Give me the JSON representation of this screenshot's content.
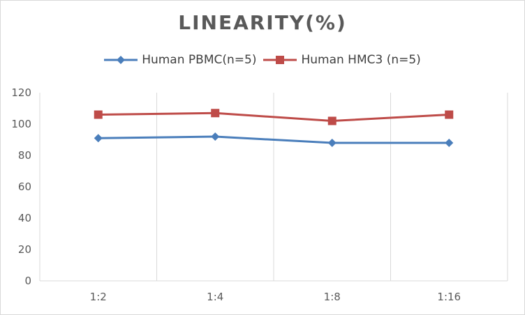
{
  "chart_data": {
    "type": "line",
    "title": "LINEARITY(%)",
    "categories": [
      "1:2",
      "1:4",
      "1:8",
      "1:16"
    ],
    "series": [
      {
        "name": "Human PBMC(n=5)",
        "values": [
          91,
          92,
          88,
          88
        ],
        "color": "#4a7ebb",
        "marker": "diamond"
      },
      {
        "name": "Human HMC3 (n=5)",
        "values": [
          106,
          107,
          102,
          106
        ],
        "color": "#be4b48",
        "marker": "square"
      }
    ],
    "ylim": [
      0,
      120
    ],
    "yticks": [
      "0",
      "20",
      "40",
      "60",
      "80",
      "100",
      "120"
    ],
    "grid": "vertical",
    "legend": "top"
  }
}
